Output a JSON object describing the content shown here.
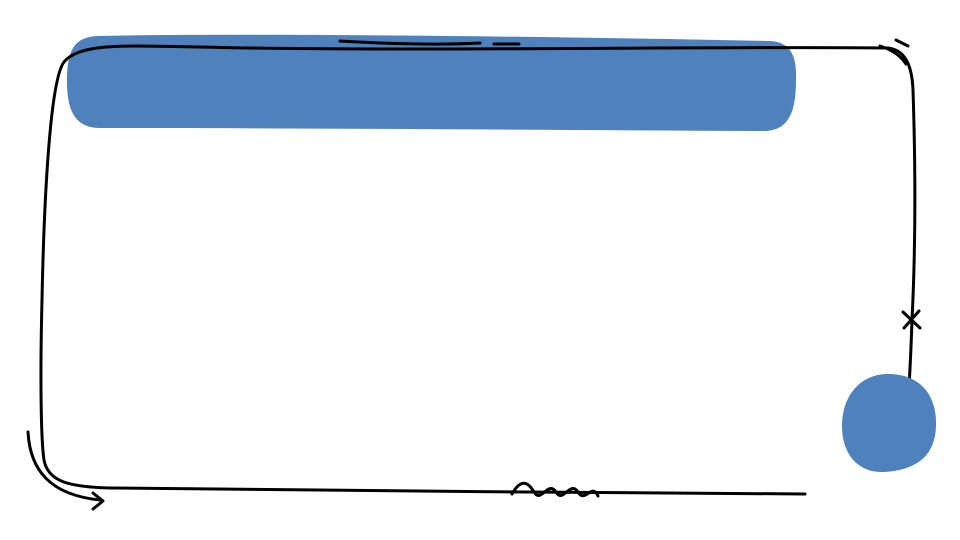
{
  "slide": {
    "title_text": "",
    "body_text": ""
  },
  "colors": {
    "accent": "#4f81bd",
    "ink": "#000000",
    "background": "#ffffff"
  },
  "decorations": {
    "banner": "blue-brush-banner",
    "frame": "hand-drawn-frame",
    "circle": "blue-blob-circle",
    "arrow": "curved-arrow-icon",
    "cross": "cross-mark-icon",
    "squiggle": "squiggle-line",
    "motion_marks": "motion-lines-icon"
  }
}
